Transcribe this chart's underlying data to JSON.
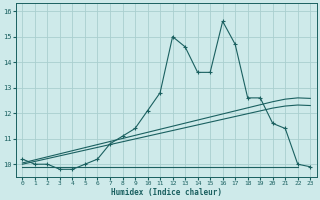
{
  "title": "",
  "xlabel": "Humidex (Indice chaleur)",
  "background_color": "#ceeaea",
  "grid_color": "#aacfcf",
  "line_color": "#1a6060",
  "x_values": [
    0,
    1,
    2,
    3,
    4,
    5,
    6,
    7,
    8,
    9,
    10,
    11,
    12,
    13,
    14,
    15,
    16,
    17,
    18,
    19,
    20,
    21,
    22,
    23
  ],
  "main_line": [
    10.2,
    10.0,
    10.0,
    9.8,
    9.8,
    10.0,
    10.2,
    10.8,
    11.1,
    11.4,
    12.1,
    12.8,
    15.0,
    14.6,
    13.6,
    13.6,
    15.6,
    14.7,
    12.6,
    12.6,
    11.6,
    11.4,
    10.0,
    9.9
  ],
  "reg_line1": [
    10.05,
    10.17,
    10.29,
    10.41,
    10.53,
    10.65,
    10.77,
    10.89,
    11.01,
    11.13,
    11.25,
    11.37,
    11.49,
    11.61,
    11.73,
    11.85,
    11.97,
    12.09,
    12.21,
    12.33,
    12.45,
    12.55,
    12.6,
    12.58
  ],
  "reg_line2": [
    10.0,
    10.11,
    10.22,
    10.33,
    10.44,
    10.55,
    10.66,
    10.77,
    10.88,
    10.99,
    11.1,
    11.21,
    11.32,
    11.43,
    11.54,
    11.65,
    11.76,
    11.87,
    11.98,
    12.09,
    12.2,
    12.28,
    12.32,
    12.3
  ],
  "flat_line_x": [
    0,
    22
  ],
  "flat_line_y": [
    9.9,
    9.9
  ],
  "xlim": [
    -0.5,
    23.5
  ],
  "ylim": [
    9.5,
    16.3
  ],
  "yticks": [
    10,
    11,
    12,
    13,
    14,
    15,
    16
  ],
  "xticks": [
    0,
    1,
    2,
    3,
    4,
    5,
    6,
    7,
    8,
    9,
    10,
    11,
    12,
    13,
    14,
    15,
    16,
    17,
    18,
    19,
    20,
    21,
    22,
    23
  ]
}
